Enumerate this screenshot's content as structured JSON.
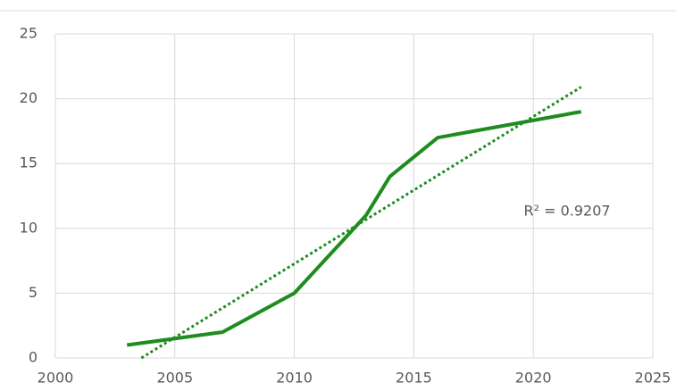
{
  "chart_data": {
    "type": "line",
    "x": [
      2003,
      2005,
      2007,
      2010,
      2013,
      2014,
      2016,
      2022
    ],
    "series": [
      {
        "color": "#1e8c1e",
        "values": [
          1,
          1.5,
          2,
          5,
          11,
          14,
          17,
          19
        ]
      }
    ],
    "trendline": {
      "x": [
        2003.6,
        2022
      ],
      "values": [
        0,
        20.9
      ],
      "color": "#1e8c1e",
      "style": "dotted"
    },
    "annotation": "R² = 0.9207",
    "xlim": [
      2000,
      2025
    ],
    "xticks": [
      2000,
      2005,
      2010,
      2015,
      2020,
      2025
    ],
    "ylim": [
      0,
      25
    ],
    "yticks": [
      0,
      5,
      10,
      15,
      20,
      25
    ],
    "grid": true
  }
}
